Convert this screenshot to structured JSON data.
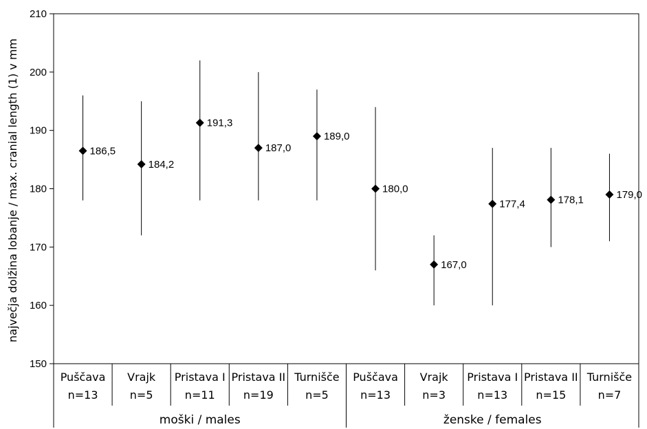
{
  "chart_data": {
    "type": "scatter",
    "title": "",
    "xlabel": "",
    "ylabel": "največja dolžina lobanje / max. cranial length (1) v mm",
    "ylim": [
      150,
      210
    ],
    "yticks": [
      150,
      160,
      170,
      180,
      190,
      200,
      210
    ],
    "grid": false,
    "legend": "none",
    "marker": "diamond",
    "color": "#000000",
    "groups": [
      {
        "label": "moški / males",
        "start": 0,
        "count": 5
      },
      {
        "label": "ženske / females",
        "start": 5,
        "count": 5
      }
    ],
    "categories": [
      {
        "site": "Puščava",
        "n": "n=13",
        "mean": 186.5,
        "mean_label": "186,5",
        "min": 178,
        "max": 196
      },
      {
        "site": "Vrajk",
        "n": "n=5",
        "mean": 184.2,
        "mean_label": "184,2",
        "min": 172,
        "max": 195
      },
      {
        "site": "Pristava I",
        "n": "n=11",
        "mean": 191.3,
        "mean_label": "191,3",
        "min": 178,
        "max": 202
      },
      {
        "site": "Pristava II",
        "n": "n=19",
        "mean": 187.0,
        "mean_label": "187,0",
        "min": 178,
        "max": 200
      },
      {
        "site": "Turnišče",
        "n": "n=5",
        "mean": 189.0,
        "mean_label": "189,0",
        "min": 178,
        "max": 197
      },
      {
        "site": "Puščava",
        "n": "n=13",
        "mean": 180.0,
        "mean_label": "180,0",
        "min": 166,
        "max": 194
      },
      {
        "site": "Vrajk",
        "n": "n=3",
        "mean": 167.0,
        "mean_label": "167,0",
        "min": 160,
        "max": 172
      },
      {
        "site": "Pristava I",
        "n": "n=13",
        "mean": 177.4,
        "mean_label": "177,4",
        "min": 160,
        "max": 187
      },
      {
        "site": "Pristava II",
        "n": "n=15",
        "mean": 178.1,
        "mean_label": "178,1",
        "min": 170,
        "max": 187
      },
      {
        "site": "Turnišče",
        "n": "n=7",
        "mean": 179.0,
        "mean_label": "179,0",
        "min": 171,
        "max": 186
      }
    ]
  }
}
